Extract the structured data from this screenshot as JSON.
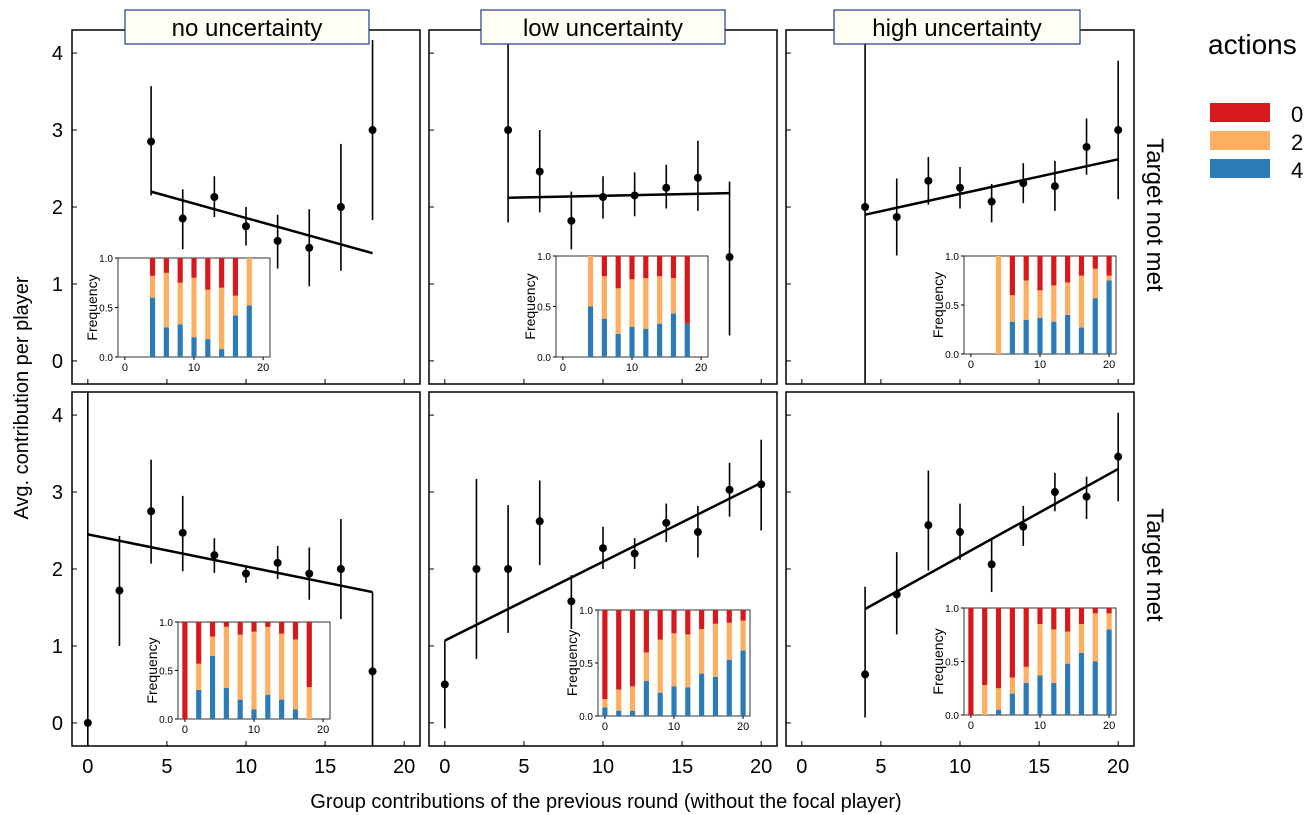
{
  "figure": {
    "xlabel": "Group contributions of the previous round (without the focal player)",
    "ylabel": "Avg. contribution per player",
    "column_headers": [
      "no uncertainty",
      "low uncertainty",
      "high uncertainty"
    ],
    "row_headers": [
      "Target not met",
      "Target met"
    ],
    "legend": {
      "title": "actions",
      "items": [
        {
          "label": "0",
          "color": "#d7191c"
        },
        {
          "label": "2",
          "color": "#fdae61"
        },
        {
          "label": "4",
          "color": "#2c7bb6"
        }
      ]
    },
    "main_x_ticks": [
      "0",
      "5",
      "10",
      "15",
      "20"
    ],
    "main_y_ticks": [
      "0",
      "1",
      "2",
      "3",
      "4"
    ],
    "inset_ylabel": "Frequency",
    "inset_y_ticks": [
      "0.0",
      "0.5",
      "1.0"
    ],
    "inset_x_ticks": [
      "0",
      "10",
      "20"
    ]
  },
  "chart_data": {
    "type": "scatter",
    "description_axes": {
      "xlim": [
        -1,
        21
      ],
      "ylim": [
        -0.3,
        4.3
      ],
      "inset_xlim": [
        -1,
        21
      ],
      "inset_ylim": [
        0,
        1
      ]
    },
    "colors": {
      "action_0": "#d7191c",
      "action_2": "#fdae61",
      "action_4": "#2c7bb6",
      "points": "#000000"
    },
    "panels": [
      {
        "row": "Target not met",
        "column": "no uncertainty",
        "points": [
          {
            "x": 4,
            "y": 2.85,
            "lo": 2.15,
            "hi": 3.57
          },
          {
            "x": 6,
            "y": 1.85,
            "lo": 1.45,
            "hi": 2.23
          },
          {
            "x": 8,
            "y": 2.13,
            "lo": 1.87,
            "hi": 2.4
          },
          {
            "x": 10,
            "y": 1.75,
            "lo": 1.5,
            "hi": 2.0
          },
          {
            "x": 12,
            "y": 1.56,
            "lo": 1.2,
            "hi": 1.9
          },
          {
            "x": 14,
            "y": 1.47,
            "lo": 0.97,
            "hi": 1.97
          },
          {
            "x": 16,
            "y": 2.0,
            "lo": 1.17,
            "hi": 2.82
          },
          {
            "x": 18,
            "y": 3.0,
            "lo": 1.83,
            "hi": 4.17
          }
        ],
        "fit": {
          "x0": 4,
          "y0": 2.2,
          "x1": 18,
          "y1": 1.4
        },
        "inset": [
          {
            "x": 4,
            "a4": 0.6,
            "a2": 0.22,
            "a0": 0.18
          },
          {
            "x": 6,
            "a4": 0.3,
            "a2": 0.55,
            "a0": 0.15
          },
          {
            "x": 8,
            "a4": 0.33,
            "a2": 0.42,
            "a0": 0.25
          },
          {
            "x": 10,
            "a4": 0.2,
            "a2": 0.6,
            "a0": 0.2
          },
          {
            "x": 12,
            "a4": 0.18,
            "a2": 0.5,
            "a0": 0.32
          },
          {
            "x": 14,
            "a4": 0.08,
            "a2": 0.62,
            "a0": 0.3
          },
          {
            "x": 16,
            "a4": 0.42,
            "a2": 0.2,
            "a0": 0.38
          },
          {
            "x": 18,
            "a4": 0.52,
            "a2": 0.48,
            "a0": 0.0
          }
        ]
      },
      {
        "row": "Target not met",
        "column": "low uncertainty",
        "points": [
          {
            "x": 4,
            "y": 3.0,
            "lo": 1.8,
            "hi": 4.2
          },
          {
            "x": 6,
            "y": 2.46,
            "lo": 1.93,
            "hi": 3.0
          },
          {
            "x": 8,
            "y": 1.82,
            "lo": 1.45,
            "hi": 2.2
          },
          {
            "x": 10,
            "y": 2.13,
            "lo": 1.85,
            "hi": 2.4
          },
          {
            "x": 12,
            "y": 2.15,
            "lo": 1.88,
            "hi": 2.45
          },
          {
            "x": 14,
            "y": 2.25,
            "lo": 1.98,
            "hi": 2.55
          },
          {
            "x": 16,
            "y": 2.38,
            "lo": 1.95,
            "hi": 2.86
          },
          {
            "x": 18,
            "y": 1.35,
            "lo": 0.33,
            "hi": 2.33
          }
        ],
        "fit": {
          "x0": 4,
          "y0": 2.12,
          "x1": 18,
          "y1": 2.18
        },
        "inset": [
          {
            "x": 4,
            "a4": 0.5,
            "a2": 0.5,
            "a0": 0.0
          },
          {
            "x": 6,
            "a4": 0.38,
            "a2": 0.42,
            "a0": 0.2
          },
          {
            "x": 8,
            "a4": 0.23,
            "a2": 0.45,
            "a0": 0.32
          },
          {
            "x": 10,
            "a4": 0.3,
            "a2": 0.47,
            "a0": 0.23
          },
          {
            "x": 12,
            "a4": 0.28,
            "a2": 0.5,
            "a0": 0.22
          },
          {
            "x": 14,
            "a4": 0.33,
            "a2": 0.47,
            "a0": 0.2
          },
          {
            "x": 16,
            "a4": 0.43,
            "a2": 0.35,
            "a0": 0.22
          },
          {
            "x": 18,
            "a4": 0.33,
            "a2": 0.0,
            "a0": 0.67
          }
        ]
      },
      {
        "row": "Target not met",
        "column": "high uncertainty",
        "points": [
          {
            "x": 4,
            "y": 2.0,
            "lo": -0.3,
            "hi": 4.3
          },
          {
            "x": 6,
            "y": 1.87,
            "lo": 1.37,
            "hi": 2.37
          },
          {
            "x": 8,
            "y": 2.34,
            "lo": 2.03,
            "hi": 2.65
          },
          {
            "x": 10,
            "y": 2.25,
            "lo": 1.98,
            "hi": 2.52
          },
          {
            "x": 12,
            "y": 2.07,
            "lo": 1.8,
            "hi": 2.3
          },
          {
            "x": 14,
            "y": 2.31,
            "lo": 2.05,
            "hi": 2.57
          },
          {
            "x": 16,
            "y": 2.27,
            "lo": 1.95,
            "hi": 2.6
          },
          {
            "x": 18,
            "y": 2.78,
            "lo": 2.42,
            "hi": 3.15
          },
          {
            "x": 20,
            "y": 3.0,
            "lo": 2.1,
            "hi": 3.9
          }
        ],
        "fit": {
          "x0": 4,
          "y0": 1.9,
          "x1": 20,
          "y1": 2.62
        },
        "inset": [
          {
            "x": 4,
            "a4": 0.0,
            "a2": 1.0,
            "a0": 0.0
          },
          {
            "x": 6,
            "a4": 0.33,
            "a2": 0.27,
            "a0": 0.4
          },
          {
            "x": 8,
            "a4": 0.35,
            "a2": 0.4,
            "a0": 0.25
          },
          {
            "x": 10,
            "a4": 0.37,
            "a2": 0.28,
            "a0": 0.35
          },
          {
            "x": 12,
            "a4": 0.33,
            "a2": 0.37,
            "a0": 0.3
          },
          {
            "x": 14,
            "a4": 0.4,
            "a2": 0.33,
            "a0": 0.27
          },
          {
            "x": 16,
            "a4": 0.27,
            "a2": 0.53,
            "a0": 0.2
          },
          {
            "x": 18,
            "a4": 0.57,
            "a2": 0.3,
            "a0": 0.13
          },
          {
            "x": 20,
            "a4": 0.75,
            "a2": 0.05,
            "a0": 0.2
          }
        ]
      },
      {
        "row": "Target met",
        "column": "no uncertainty",
        "points": [
          {
            "x": 0,
            "y": 0.0,
            "lo": -0.3,
            "hi": 4.3
          },
          {
            "x": 2,
            "y": 1.72,
            "lo": 1.0,
            "hi": 2.43
          },
          {
            "x": 4,
            "y": 2.75,
            "lo": 2.07,
            "hi": 3.42
          },
          {
            "x": 6,
            "y": 2.47,
            "lo": 1.97,
            "hi": 2.95
          },
          {
            "x": 8,
            "y": 2.18,
            "lo": 1.95,
            "hi": 2.4
          },
          {
            "x": 10,
            "y": 1.94,
            "lo": 1.82,
            "hi": 2.05
          },
          {
            "x": 12,
            "y": 2.08,
            "lo": 1.87,
            "hi": 2.3
          },
          {
            "x": 14,
            "y": 1.94,
            "lo": 1.6,
            "hi": 2.28
          },
          {
            "x": 16,
            "y": 2.0,
            "lo": 1.35,
            "hi": 2.65
          },
          {
            "x": 18,
            "y": 0.67,
            "lo": -0.3,
            "hi": 1.7
          }
        ],
        "fit": {
          "x0": 0,
          "y0": 2.45,
          "x1": 18,
          "y1": 1.7
        },
        "inset": [
          {
            "x": 0,
            "a4": 0.0,
            "a2": 0.0,
            "a0": 1.0
          },
          {
            "x": 2,
            "a4": 0.3,
            "a2": 0.27,
            "a0": 0.43
          },
          {
            "x": 4,
            "a4": 0.65,
            "a2": 0.2,
            "a0": 0.15
          },
          {
            "x": 6,
            "a4": 0.32,
            "a2": 0.63,
            "a0": 0.05
          },
          {
            "x": 8,
            "a4": 0.2,
            "a2": 0.67,
            "a0": 0.13
          },
          {
            "x": 10,
            "a4": 0.1,
            "a2": 0.8,
            "a0": 0.1
          },
          {
            "x": 12,
            "a4": 0.25,
            "a2": 0.7,
            "a0": 0.05
          },
          {
            "x": 14,
            "a4": 0.2,
            "a2": 0.68,
            "a0": 0.12
          },
          {
            "x": 16,
            "a4": 0.1,
            "a2": 0.72,
            "a0": 0.18
          },
          {
            "x": 18,
            "a4": 0.0,
            "a2": 0.33,
            "a0": 0.67
          }
        ]
      },
      {
        "row": "Target met",
        "column": "low uncertainty",
        "points": [
          {
            "x": 0,
            "y": 0.5,
            "lo": -0.07,
            "hi": 1.07
          },
          {
            "x": 2,
            "y": 2.0,
            "lo": 0.83,
            "hi": 3.17
          },
          {
            "x": 4,
            "y": 2.0,
            "lo": 1.17,
            "hi": 2.83
          },
          {
            "x": 6,
            "y": 2.62,
            "lo": 2.05,
            "hi": 3.15
          },
          {
            "x": 8,
            "y": 1.58,
            "lo": 1.22,
            "hi": 1.92
          },
          {
            "x": 10,
            "y": 2.27,
            "lo": 2.0,
            "hi": 2.55
          },
          {
            "x": 12,
            "y": 2.2,
            "lo": 2.0,
            "hi": 2.4
          },
          {
            "x": 14,
            "y": 2.6,
            "lo": 2.35,
            "hi": 2.85
          },
          {
            "x": 16,
            "y": 2.48,
            "lo": 2.15,
            "hi": 2.82
          },
          {
            "x": 18,
            "y": 3.03,
            "lo": 2.68,
            "hi": 3.38
          },
          {
            "x": 20,
            "y": 3.1,
            "lo": 2.5,
            "hi": 3.68
          }
        ],
        "fit": {
          "x0": 0,
          "y0": 1.07,
          "x1": 20,
          "y1": 3.12
        },
        "inset": [
          {
            "x": 0,
            "a4": 0.08,
            "a2": 0.08,
            "a0": 0.84
          },
          {
            "x": 2,
            "a4": 0.05,
            "a2": 0.2,
            "a0": 0.75
          },
          {
            "x": 4,
            "a4": 0.05,
            "a2": 0.23,
            "a0": 0.72
          },
          {
            "x": 6,
            "a4": 0.33,
            "a2": 0.27,
            "a0": 0.4
          },
          {
            "x": 8,
            "a4": 0.22,
            "a2": 0.5,
            "a0": 0.28
          },
          {
            "x": 10,
            "a4": 0.28,
            "a2": 0.5,
            "a0": 0.22
          },
          {
            "x": 12,
            "a4": 0.27,
            "a2": 0.5,
            "a0": 0.23
          },
          {
            "x": 14,
            "a4": 0.4,
            "a2": 0.42,
            "a0": 0.18
          },
          {
            "x": 16,
            "a4": 0.37,
            "a2": 0.5,
            "a0": 0.13
          },
          {
            "x": 18,
            "a4": 0.53,
            "a2": 0.35,
            "a0": 0.12
          },
          {
            "x": 20,
            "a4": 0.62,
            "a2": 0.28,
            "a0": 0.1
          }
        ]
      },
      {
        "row": "Target met",
        "column": "high uncertainty",
        "points": [
          {
            "x": 4,
            "y": 0.63,
            "lo": 0.07,
            "hi": 1.77
          },
          {
            "x": 6,
            "y": 1.67,
            "lo": 1.15,
            "hi": 2.22
          },
          {
            "x": 8,
            "y": 2.57,
            "lo": 1.98,
            "hi": 3.28
          },
          {
            "x": 10,
            "y": 2.48,
            "lo": 2.12,
            "hi": 2.85
          },
          {
            "x": 12,
            "y": 2.06,
            "lo": 1.7,
            "hi": 2.4
          },
          {
            "x": 14,
            "y": 2.55,
            "lo": 2.3,
            "hi": 2.82
          },
          {
            "x": 16,
            "y": 3.0,
            "lo": 2.75,
            "hi": 3.25
          },
          {
            "x": 18,
            "y": 2.94,
            "lo": 2.65,
            "hi": 3.2
          },
          {
            "x": 20,
            "y": 3.46,
            "lo": 2.88,
            "hi": 4.03
          }
        ],
        "fit": {
          "x0": 4,
          "y0": 1.48,
          "x1": 20,
          "y1": 3.3
        },
        "inset": [
          {
            "x": 0,
            "a4": 0.0,
            "a2": 0.0,
            "a0": 1.0
          },
          {
            "x": 2,
            "a4": 0.0,
            "a2": 0.28,
            "a0": 0.72
          },
          {
            "x": 4,
            "a4": 0.05,
            "a2": 0.2,
            "a0": 0.75
          },
          {
            "x": 6,
            "a4": 0.2,
            "a2": 0.15,
            "a0": 0.65
          },
          {
            "x": 8,
            "a4": 0.3,
            "a2": 0.15,
            "a0": 0.55
          },
          {
            "x": 10,
            "a4": 0.37,
            "a2": 0.48,
            "a0": 0.15
          },
          {
            "x": 12,
            "a4": 0.3,
            "a2": 0.5,
            "a0": 0.2
          },
          {
            "x": 14,
            "a4": 0.48,
            "a2": 0.3,
            "a0": 0.22
          },
          {
            "x": 16,
            "a4": 0.58,
            "a2": 0.27,
            "a0": 0.15
          },
          {
            "x": 18,
            "a4": 0.5,
            "a2": 0.45,
            "a0": 0.05
          },
          {
            "x": 20,
            "a4": 0.8,
            "a2": 0.15,
            "a0": 0.05
          }
        ]
      }
    ]
  }
}
